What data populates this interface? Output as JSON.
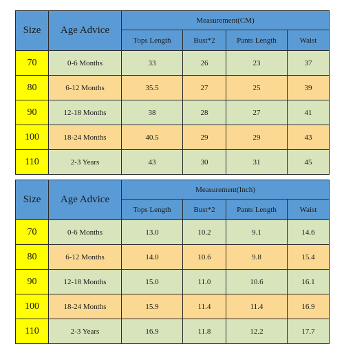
{
  "tables": [
    {
      "size_header": "Size",
      "age_header": "Age Advice",
      "measurement_header": "Measurement(CM)",
      "columns": [
        "Tops Length",
        "Bust*2",
        "Pants Length",
        "Waist"
      ],
      "rows": [
        {
          "size": "70",
          "age": "0-6 Months",
          "values": [
            "33",
            "26",
            "23",
            "37"
          ]
        },
        {
          "size": "80",
          "age": "6-12 Months",
          "values": [
            "35.5",
            "27",
            "25",
            "39"
          ]
        },
        {
          "size": "90",
          "age": "12-18 Months",
          "values": [
            "38",
            "28",
            "27",
            "41"
          ]
        },
        {
          "size": "100",
          "age": "18-24 Months",
          "values": [
            "40.5",
            "29",
            "29",
            "43"
          ]
        },
        {
          "size": "110",
          "age": "2-3 Years",
          "values": [
            "43",
            "30",
            "31",
            "45"
          ]
        }
      ]
    },
    {
      "size_header": "Size",
      "age_header": "Age Advice",
      "measurement_header": "Measurement(Inch)",
      "columns": [
        "Tops Length",
        "Bust*2",
        "Pants Length",
        "Waist"
      ],
      "rows": [
        {
          "size": "70",
          "age": "0-6 Months",
          "values": [
            "13.0",
            "10.2",
            "9.1",
            "14.6"
          ]
        },
        {
          "size": "80",
          "age": "6-12 Months",
          "values": [
            "14.0",
            "10.6",
            "9.8",
            "15.4"
          ]
        },
        {
          "size": "90",
          "age": "12-18 Months",
          "values": [
            "15.0",
            "11.0",
            "10.6",
            "16.1"
          ]
        },
        {
          "size": "100",
          "age": "18-24 Months",
          "values": [
            "15.9",
            "11.4",
            "11.4",
            "16.9"
          ]
        },
        {
          "size": "110",
          "age": "2-3 Years",
          "values": [
            "16.9",
            "11.8",
            "12.2",
            "17.7"
          ]
        }
      ]
    }
  ],
  "colors": {
    "header_blue": "#5b9bd5",
    "size_yellow": "#ffff00",
    "row_green": "#d8e4bc",
    "row_orange": "#fcd992"
  }
}
